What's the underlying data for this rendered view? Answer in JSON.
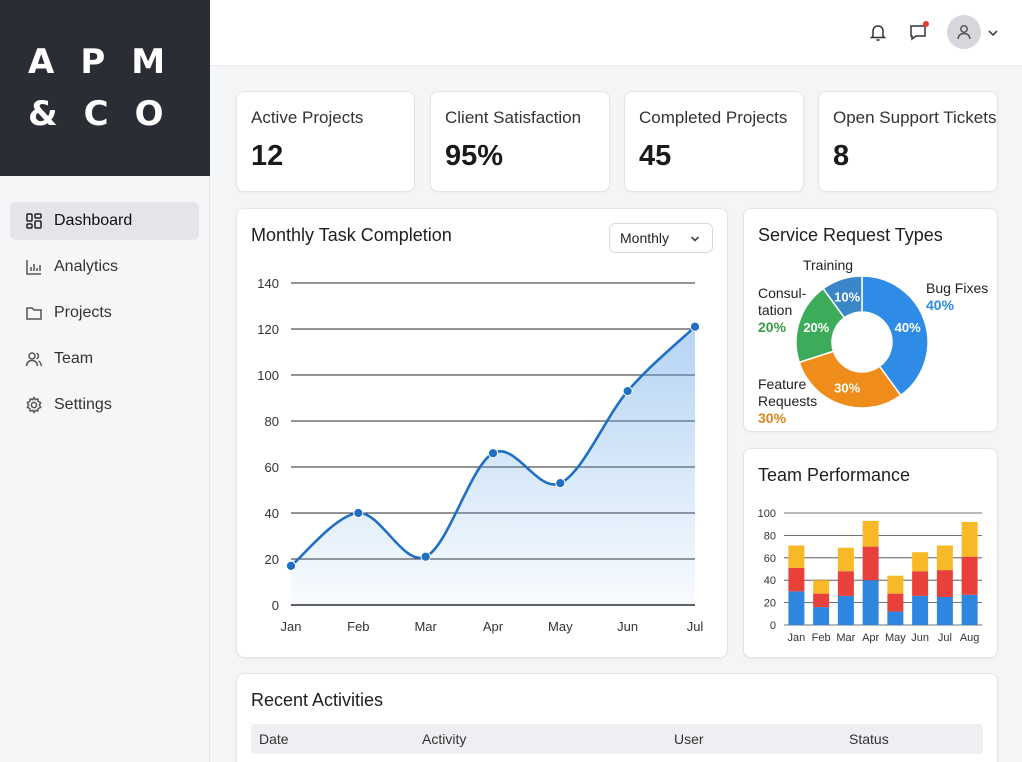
{
  "logo": {
    "line1": "APM",
    "line2": "&CO"
  },
  "sidebar": {
    "items": [
      {
        "label": "Dashboard",
        "icon": "dashboard-icon",
        "active": true
      },
      {
        "label": "Analytics",
        "icon": "analytics-icon",
        "active": false
      },
      {
        "label": "Projects",
        "icon": "folder-icon",
        "active": false
      },
      {
        "label": "Team",
        "icon": "team-icon",
        "active": false
      },
      {
        "label": "Settings",
        "icon": "gear-icon",
        "active": false
      }
    ]
  },
  "topbar": {
    "icons": [
      "bell-icon",
      "message-icon",
      "user-icon",
      "chevron-down-icon"
    ],
    "notification_dot_color": "#e53935"
  },
  "stats": [
    {
      "label": "Active Projects",
      "value": "12"
    },
    {
      "label": "Client Satisfaction",
      "value": "95%"
    },
    {
      "label": "Completed Projects",
      "value": "45"
    },
    {
      "label": "Open Support Tickets",
      "value": "8"
    }
  ],
  "line_card": {
    "title": "Monthly Task Completion",
    "dropdown_value": "Monthly"
  },
  "donut_card": {
    "title": "Service Request Types"
  },
  "bar_card": {
    "title": "Team Performance"
  },
  "activities": {
    "title": "Recent Activities",
    "columns": [
      "Date",
      "Activity",
      "User",
      "Status"
    ]
  },
  "chart_data": [
    {
      "type": "line",
      "title": "Monthly Task Completion",
      "x": [
        "Jan",
        "Feb",
        "Mar",
        "Apr",
        "May",
        "Jun",
        "Jul"
      ],
      "y_ticks": [
        0,
        20,
        40,
        60,
        80,
        100,
        120,
        140
      ],
      "ylim": [
        0,
        140
      ],
      "series": [
        {
          "values": [
            17,
            40,
            21,
            66,
            53,
            93,
            121
          ],
          "color": "#1f6fc5"
        }
      ],
      "grid": true,
      "area_fill": true
    },
    {
      "type": "pie",
      "title": "Service Request Types",
      "donut": true,
      "slices": [
        {
          "label": "Bug Fixes",
          "value": 40,
          "display": "40%",
          "color": "#2e8be6"
        },
        {
          "label": "Feature Requests",
          "value": 30,
          "display": "30%",
          "color": "#f08c1a"
        },
        {
          "label": "Consultation",
          "value": 20,
          "display": "20%",
          "color": "#3cab5a"
        },
        {
          "label": "Training",
          "value": 10,
          "display": "10%",
          "color": "#3a86c8"
        }
      ],
      "outer_labels": [
        {
          "lines": [
            "Bug Fixes"
          ],
          "pct": "40%",
          "pct_color": "#2e8be6"
        },
        {
          "lines": [
            "Feature",
            "Requests"
          ],
          "pct": "30%",
          "pct_color": "#d8871c"
        },
        {
          "lines": [
            "Consul-",
            "tation"
          ],
          "pct": "20%",
          "pct_color": "#3a9a4c"
        },
        {
          "lines": [
            "Training"
          ],
          "pct": "",
          "pct_color": "#333333"
        }
      ]
    },
    {
      "type": "bar",
      "stacked": true,
      "title": "Team Performance",
      "categories": [
        "Jan",
        "Feb",
        "Mar",
        "Apr",
        "May",
        "Jun",
        "Jul",
        "Aug"
      ],
      "y_ticks": [
        0,
        20,
        40,
        60,
        80,
        100
      ],
      "ylim": [
        0,
        100
      ],
      "series": [
        {
          "color": "#2e86de",
          "values": [
            30,
            16,
            26,
            40,
            12,
            26,
            25,
            27
          ]
        },
        {
          "color": "#e8403a",
          "values": [
            21,
            12,
            22,
            30,
            16,
            22,
            24,
            34
          ]
        },
        {
          "color": "#f7b928",
          "values": [
            20,
            12,
            21,
            23,
            16,
            17,
            22,
            31
          ]
        }
      ],
      "grid": true
    }
  ]
}
